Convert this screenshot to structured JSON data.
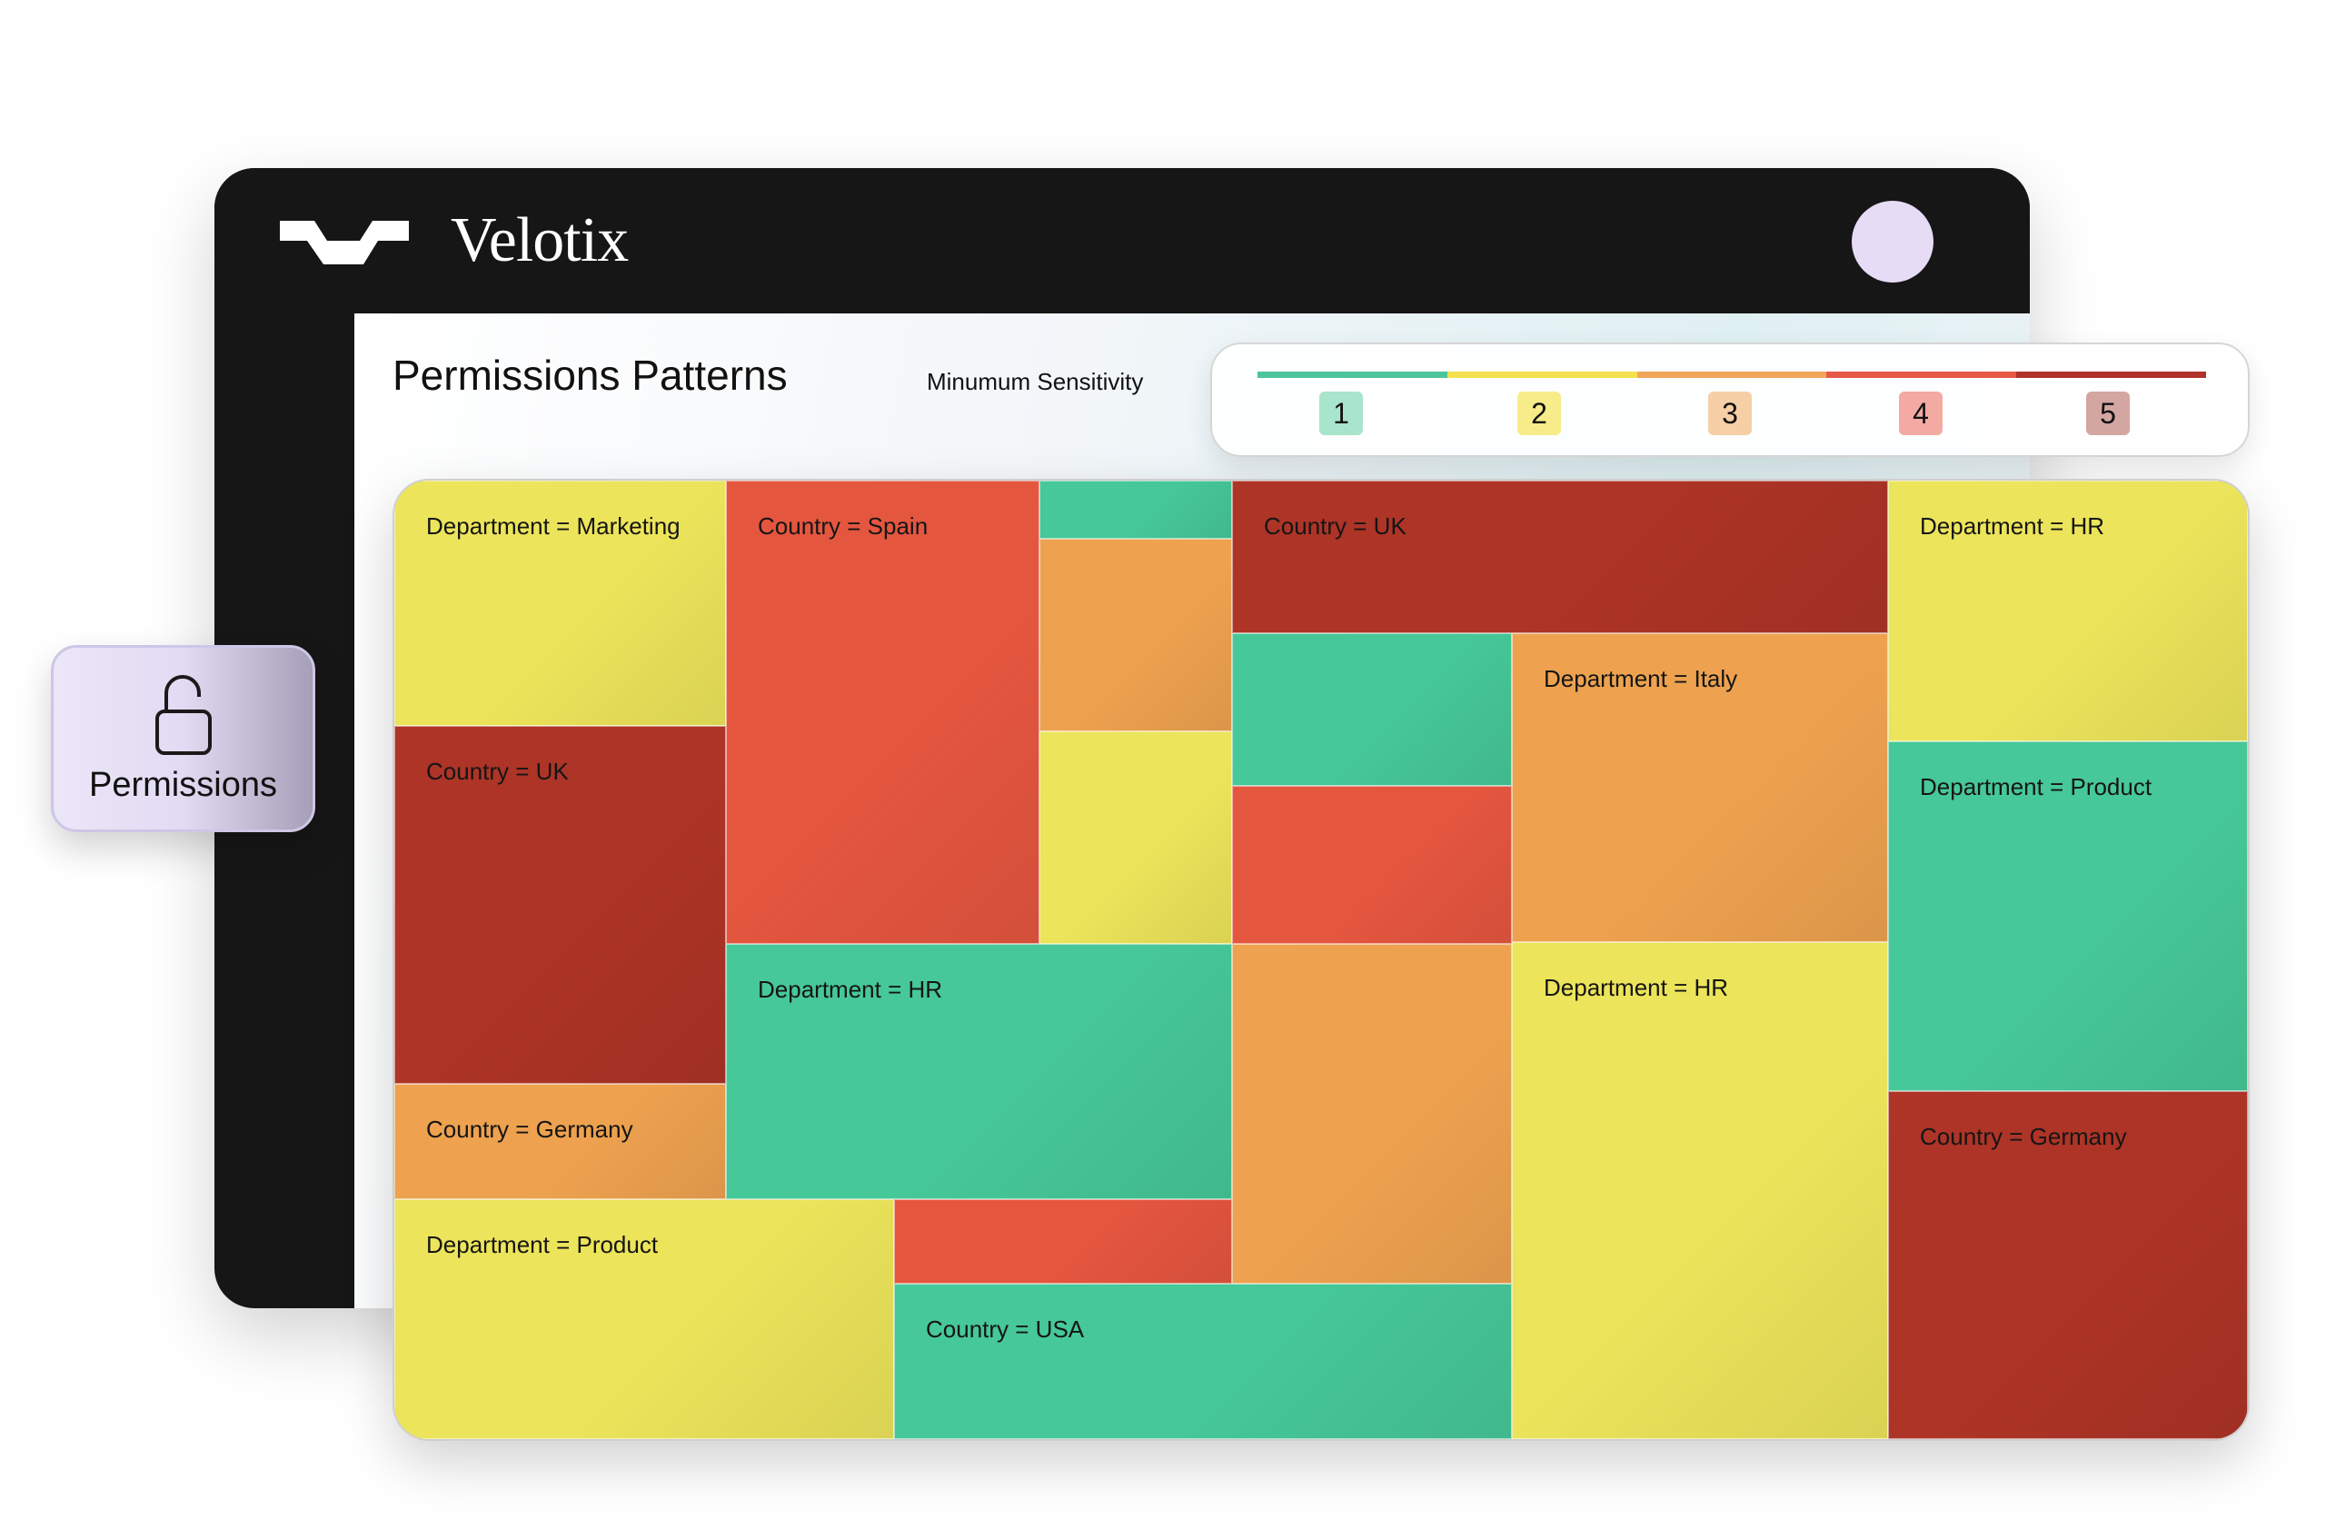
{
  "header": {
    "brand": "Velotix"
  },
  "page": {
    "title": "Permissions Patterns",
    "sensitivity_label": "Minumum Sensitivity"
  },
  "legend": {
    "levels": [
      {
        "label": "1",
        "bar": "#4cc59a",
        "chip": "#a9e4cc"
      },
      {
        "label": "2",
        "bar": "#f4e14d",
        "chip": "#f7ec8a"
      },
      {
        "label": "3",
        "bar": "#f2a65b",
        "chip": "#f6cfa6"
      },
      {
        "label": "4",
        "bar": "#e65a46",
        "chip": "#f2aaa2"
      },
      {
        "label": "5",
        "bar": "#b0322a",
        "chip": "#d4a6a2"
      }
    ]
  },
  "chart_data": {
    "type": "heatmap",
    "tiles": [
      {
        "label": "Department = Marketing",
        "level": 2
      },
      {
        "label": "Country = UK",
        "level": 5
      },
      {
        "label": "Country = Germany",
        "level": 3
      },
      {
        "label": "Country = Spain",
        "level": 4
      },
      {
        "label": "",
        "level": 1
      },
      {
        "label": "",
        "level": 3
      },
      {
        "label": "",
        "level": 2
      },
      {
        "label": "Department = HR",
        "level": 1
      },
      {
        "label": "Department = Product",
        "level": 2
      },
      {
        "label": "",
        "level": 4
      },
      {
        "label": "Country = USA",
        "level": 1
      },
      {
        "label": "Country = UK",
        "level": 5
      },
      {
        "label": "",
        "level": 1
      },
      {
        "label": "",
        "level": 4
      },
      {
        "label": "",
        "level": 3
      },
      {
        "label": "Department = Italy",
        "level": 3
      },
      {
        "label": "Department = HR",
        "level": 2
      },
      {
        "label": "Department = HR",
        "level": 2
      },
      {
        "label": "Department = Product",
        "level": 1
      },
      {
        "label": "Country = Germany",
        "level": 5
      }
    ]
  },
  "permissions_card": {
    "label": "Permissions",
    "icon": "unlocked-padlock-icon"
  },
  "colors": {
    "header_bg": "#161616",
    "avatar": "#e6dcf5"
  }
}
